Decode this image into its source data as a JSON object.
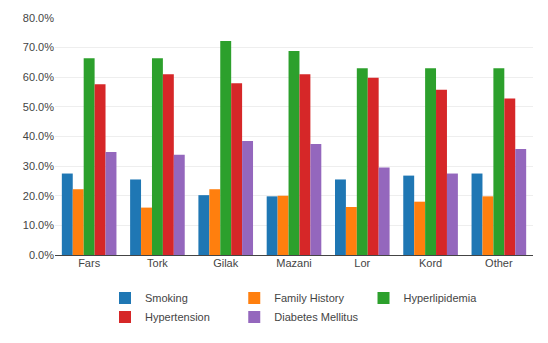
{
  "chart_data": {
    "type": "bar",
    "categories": [
      "Fars",
      "Tork",
      "Gilak",
      "Mazani",
      "Lor",
      "Kord",
      "Other"
    ],
    "series": [
      {
        "name": "Smoking",
        "values": [
          0.275,
          0.255,
          0.202,
          0.198,
          0.255,
          0.268,
          0.275
        ]
      },
      {
        "name": "Family History",
        "values": [
          0.222,
          0.16,
          0.222,
          0.2,
          0.162,
          0.18,
          0.198
        ]
      },
      {
        "name": "Hyperlipidemia",
        "values": [
          0.664,
          0.664,
          0.722,
          0.689,
          0.63,
          0.63,
          0.63
        ]
      },
      {
        "name": "Hypertension",
        "values": [
          0.576,
          0.61,
          0.58,
          0.61,
          0.598,
          0.558,
          0.528
        ]
      },
      {
        "name": "Diabetes Mellitus",
        "values": [
          0.348,
          0.338,
          0.385,
          0.375,
          0.295,
          0.275,
          0.358
        ]
      }
    ],
    "ylim": [
      0.0,
      0.8
    ],
    "yticks": [
      {
        "value": 0.0,
        "label": "0.0%"
      },
      {
        "value": 0.1,
        "label": "10.0%"
      },
      {
        "value": 0.2,
        "label": "20.0%"
      },
      {
        "value": 0.3,
        "label": "30.0%"
      },
      {
        "value": 0.4,
        "label": "40.0%"
      },
      {
        "value": 0.5,
        "label": "50.0%"
      },
      {
        "value": 0.6,
        "label": "60.0%"
      },
      {
        "value": 0.7,
        "label": "70.0%"
      },
      {
        "value": 0.8,
        "label": "80.0%"
      }
    ],
    "grid": true,
    "legend": "bottom"
  }
}
